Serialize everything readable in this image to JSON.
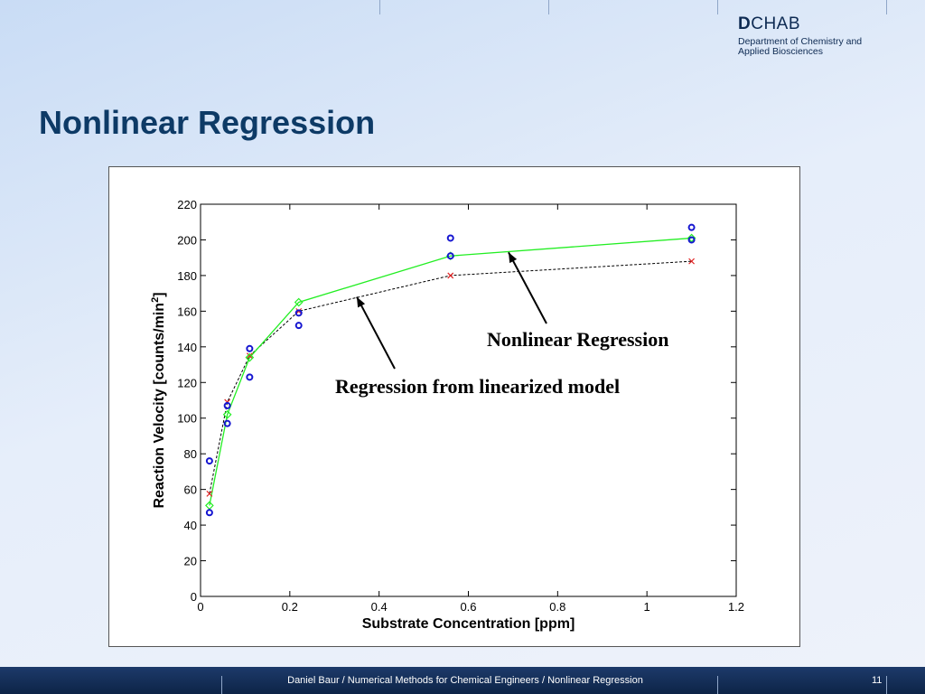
{
  "header": {
    "logo_d": "D",
    "logo_rest": "CHAB",
    "logo_line1": "Department of Chemistry and",
    "logo_line2": "Applied Biosciences"
  },
  "title": "Nonlinear Regression",
  "footer": {
    "text": "Daniel Baur / Numerical Methods for Chemical Engineers / Nonlinear Regression",
    "page": "11"
  },
  "chart_data": {
    "type": "scatter",
    "xlabel": "Substrate Concentration [ppm]",
    "ylabel": "Reaction Velocity [counts/min",
    "ylabel_sup": "2",
    "ylabel_end": "]",
    "xlim": [
      0,
      1.2
    ],
    "ylim": [
      0,
      220
    ],
    "xticks": [
      0,
      0.2,
      0.4,
      0.6,
      0.8,
      1,
      1.2
    ],
    "xtick_labels": [
      "0",
      "0.2",
      "0.4",
      "0.6",
      "0.8",
      "1",
      "1.2"
    ],
    "yticks": [
      0,
      20,
      40,
      60,
      80,
      100,
      120,
      140,
      160,
      180,
      200,
      220
    ],
    "grid": false,
    "series": [
      {
        "marker": "circle",
        "color": "#1515d0",
        "x": [
          0.02,
          0.02,
          0.06,
          0.06,
          0.11,
          0.11,
          0.22,
          0.22,
          0.56,
          0.56,
          1.1,
          1.1
        ],
        "y": [
          76,
          47,
          107,
          97,
          139,
          123,
          159,
          152,
          201,
          191,
          207,
          200
        ]
      },
      {
        "marker": "x",
        "line": "dashed",
        "color": "#e02020",
        "line_color": "#000000",
        "x": [
          0.02,
          0.06,
          0.11,
          0.22,
          0.56,
          1.1
        ],
        "y": [
          57.6,
          109,
          135,
          160,
          180,
          188
        ]
      },
      {
        "marker": "diamond",
        "line": "solid",
        "color": "#22ee22",
        "x": [
          0.02,
          0.06,
          0.11,
          0.22,
          0.56,
          1.1
        ],
        "y": [
          51,
          102,
          134,
          165,
          191,
          201
        ]
      }
    ],
    "annotations": [
      {
        "text": "Nonlinear Regression",
        "arrow_to": [
          0.69,
          193
        ]
      },
      {
        "text": "Regression from linearized model",
        "arrow_to": [
          0.35,
          168
        ]
      }
    ]
  }
}
